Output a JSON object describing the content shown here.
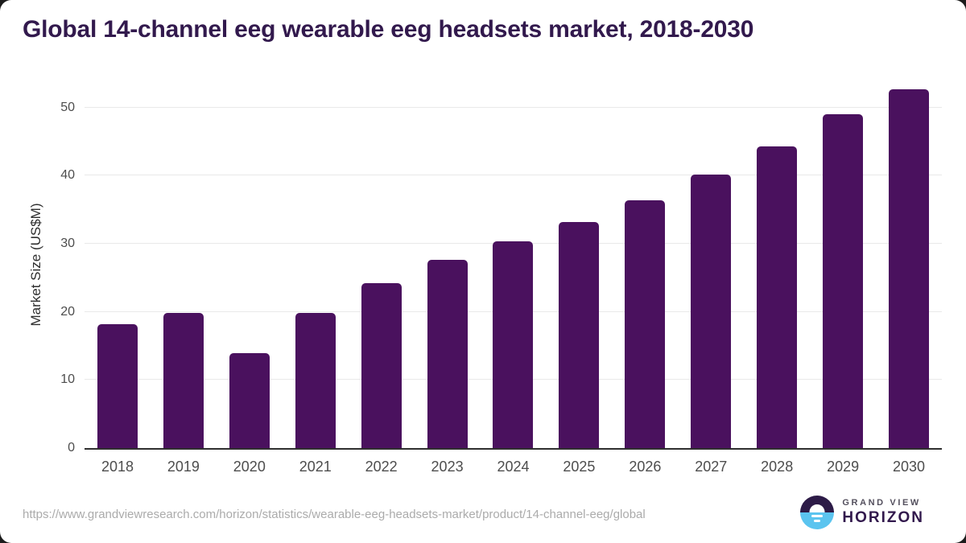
{
  "page": {
    "title": "Global 14-channel eeg wearable eeg headsets market, 2018-2030",
    "source_url": "https://www.grandviewresearch.com/horizon/statistics/wearable-eeg-headsets-market/product/14-channel-eeg/global"
  },
  "logo": {
    "brand_top": "GRAND VIEW",
    "brand_bottom": "HORIZON"
  },
  "colors": {
    "bar": "#4a115e",
    "title": "#32194d",
    "tick_label": "#4d4d4d",
    "axis_title": "#2e2e2e",
    "gridline": "#e9e9e9",
    "axis_line": "#2f2f2f",
    "source_text": "#ababab",
    "logo_dark": "#2d1b47",
    "logo_blue": "#5bc4ef"
  },
  "chart_data": {
    "type": "bar",
    "title": "Global 14-channel eeg wearable eeg headsets market, 2018-2030",
    "categories": [
      "2018",
      "2019",
      "2020",
      "2021",
      "2022",
      "2023",
      "2024",
      "2025",
      "2026",
      "2027",
      "2028",
      "2029",
      "2030"
    ],
    "values": [
      18.2,
      19.9,
      14.0,
      19.9,
      24.2,
      27.6,
      30.4,
      33.2,
      36.4,
      40.2,
      44.3,
      49.0,
      52.7
    ],
    "xlabel": "",
    "ylabel": "Market Size (US$M)",
    "ylim": [
      0,
      54
    ],
    "yticks": [
      0,
      10,
      20,
      30,
      40,
      50
    ],
    "grid": true,
    "legend": false,
    "bar_color": "#4a115e"
  }
}
